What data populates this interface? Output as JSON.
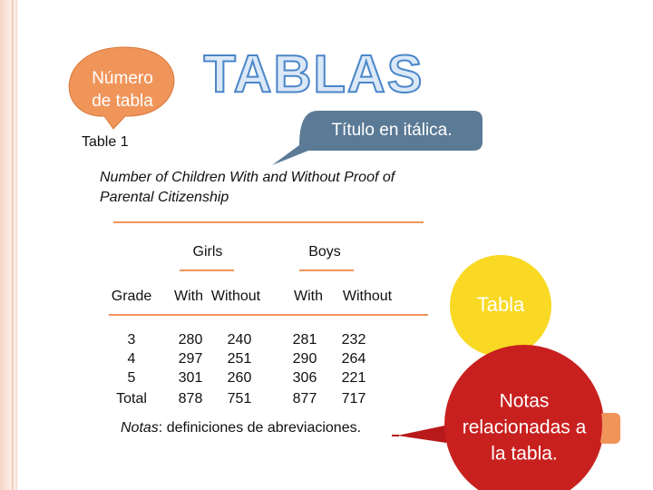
{
  "header": {
    "title": "TABLAS"
  },
  "callouts": {
    "table_number": [
      "Número",
      "de tabla"
    ],
    "italic_title": "Título en itálica.",
    "table": "Tabla",
    "notes": [
      "Notas",
      "relacionadas a",
      "la tabla."
    ]
  },
  "table": {
    "number": "Table 1",
    "title": [
      "Number of Children With and Without Proof of",
      "Parental Citizenship"
    ],
    "groups": [
      "Girls",
      "Boys"
    ],
    "columns": [
      "Grade",
      "With",
      "Without",
      "With",
      "Without"
    ],
    "rows": [
      [
        "3",
        280,
        240,
        281,
        232
      ],
      [
        "4",
        297,
        251,
        290,
        264
      ],
      [
        "5",
        301,
        260,
        306,
        221
      ],
      [
        "Total",
        878,
        751,
        877,
        717
      ]
    ],
    "note_label": "Notas",
    "note_text": ": definiciones de abreviaciones."
  }
}
